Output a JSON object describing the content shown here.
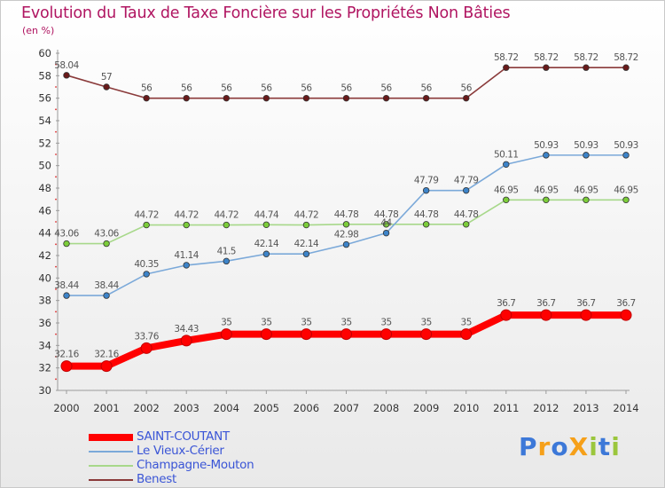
{
  "title": "Evolution du Taux de Taxe Foncière sur les Propriétés Non Bâties",
  "subtitle": "(en %)",
  "logo": {
    "text": "ProXiti",
    "colors": [
      "#3c78d8",
      "#f6a019",
      "#3c78d8",
      "#f6a019",
      "#9bc63c",
      "#3c78d8",
      "#9bc63c"
    ]
  },
  "chart_data": {
    "type": "line",
    "title": "Evolution du Taux de Taxe Foncière sur les Propriétés Non Bâties",
    "ylabel": "(en %)",
    "xlabel": "",
    "ylim": [
      30,
      60
    ],
    "yticks": [
      30,
      32,
      34,
      36,
      38,
      40,
      42,
      44,
      46,
      48,
      50,
      52,
      54,
      56,
      58,
      60
    ],
    "grid": false,
    "legend_position": "bottom-left",
    "x": [
      "2000",
      "2001",
      "2002",
      "2003",
      "2004",
      "2005",
      "2006",
      "2007",
      "2008",
      "2009",
      "2010",
      "2011",
      "2012",
      "2013",
      "2014"
    ],
    "series": [
      {
        "name": "SAINT-COUTANT",
        "color": "#ff0000",
        "marker": "#e00000",
        "values": [
          32.16,
          32.16,
          33.76,
          34.43,
          35,
          35,
          35,
          35,
          35,
          35,
          35,
          36.7,
          36.7,
          36.7,
          36.7
        ],
        "labels": [
          "32.16",
          "32.16",
          "33.76",
          "34.43",
          "35",
          "35",
          "35",
          "35",
          "35",
          "35",
          "35",
          "36.7",
          "36.7",
          "36.7",
          "36.7"
        ]
      },
      {
        "name": "Le Vieux-Cérier",
        "color": "#7ba9d9",
        "marker": "#3d84c9",
        "values": [
          38.44,
          38.44,
          40.35,
          41.14,
          41.5,
          42.14,
          42.14,
          42.98,
          44,
          47.79,
          47.79,
          50.11,
          50.93,
          50.93,
          50.93
        ],
        "labels": [
          "38.44",
          "38.44",
          "40.35",
          "41.14",
          "41.5",
          "42.14",
          "42.14",
          "42.98",
          "44",
          "47.79",
          "47.79",
          "50.11",
          "50.93",
          "50.93",
          "50.93"
        ]
      },
      {
        "name": "Champagne-Mouton",
        "color": "#a7d88a",
        "marker": "#7ccd3a",
        "values": [
          43.06,
          43.06,
          44.72,
          44.72,
          44.72,
          44.74,
          44.72,
          44.78,
          44.78,
          44.78,
          44.78,
          46.95,
          46.95,
          46.95,
          46.95
        ],
        "labels": [
          "43.06",
          "43.06",
          "44.72",
          "44.72",
          "44.72",
          "44.74",
          "44.72",
          "44.78",
          "44.78",
          "44.78",
          "44.78",
          "46.95",
          "46.95",
          "46.95",
          "46.95"
        ]
      },
      {
        "name": "Benest",
        "color": "#8a3a3a",
        "marker": "#6a1a1a",
        "values": [
          58.04,
          57,
          56,
          56,
          56,
          56,
          56,
          56,
          56,
          56,
          56,
          58.72,
          58.72,
          58.72,
          58.72
        ],
        "labels": [
          "58.04",
          "57",
          "56",
          "56",
          "56",
          "56",
          "56",
          "56",
          "56",
          "56",
          "56",
          "58.72",
          "58.72",
          "58.72",
          "58.72"
        ]
      }
    ]
  }
}
